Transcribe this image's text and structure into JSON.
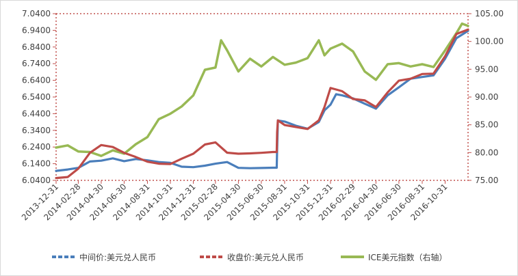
{
  "chart_data": {
    "type": "line",
    "title": "",
    "xlabel": "",
    "ylabel": "",
    "x_tick_labels": [
      "2013-12-31",
      "2014-02-28",
      "2014-04-30",
      "2014-06-30",
      "2014-08-31",
      "2014-10-31",
      "2014-12-31",
      "2015-02-28",
      "2015-04-30",
      "2015-06-30",
      "2015-08-31",
      "2015-10-31",
      "2015-12-31",
      "2016-02-29",
      "2016-04-30",
      "2016-06-30",
      "2016-08-31",
      "2016-10-31"
    ],
    "x_range": [
      "2013-12-31",
      "2016-12-31"
    ],
    "y_left_ticks": [
      "6.0400",
      "6.1400",
      "6.2400",
      "6.3400",
      "6.4400",
      "6.5400",
      "6.6400",
      "6.7400",
      "6.8400",
      "6.9400",
      "7.0400"
    ],
    "y_left_range": [
      6.04,
      7.04
    ],
    "y_right_ticks": [
      "75.00",
      "80.00",
      "85.00",
      "90.00",
      "95.00",
      "100.00",
      "105.00"
    ],
    "y_right_range": [
      75,
      105
    ],
    "grid": false,
    "legend_position": "bottom",
    "series": [
      {
        "name": "中间价:美元兑人民币",
        "axis": "left",
        "color": "#4a7ebb",
        "style": "dashed",
        "points": [
          [
            "2013-12-31",
            6.097
          ],
          [
            "2014-01-31",
            6.105
          ],
          [
            "2014-02-28",
            6.115
          ],
          [
            "2014-03-31",
            6.153
          ],
          [
            "2014-04-30",
            6.158
          ],
          [
            "2014-05-31",
            6.172
          ],
          [
            "2014-06-30",
            6.155
          ],
          [
            "2014-07-31",
            6.168
          ],
          [
            "2014-08-31",
            6.16
          ],
          [
            "2014-09-30",
            6.15
          ],
          [
            "2014-10-31",
            6.145
          ],
          [
            "2014-11-30",
            6.122
          ],
          [
            "2014-12-31",
            6.119
          ],
          [
            "2015-01-31",
            6.128
          ],
          [
            "2015-02-28",
            6.14
          ],
          [
            "2015-03-31",
            6.15
          ],
          [
            "2015-04-30",
            6.115
          ],
          [
            "2015-05-31",
            6.113
          ],
          [
            "2015-06-30",
            6.114
          ],
          [
            "2015-07-31",
            6.116
          ],
          [
            "2015-08-10",
            6.116
          ],
          [
            "2015-08-11",
            6.229
          ],
          [
            "2015-08-13",
            6.399
          ],
          [
            "2015-08-31",
            6.393
          ],
          [
            "2015-09-30",
            6.368
          ],
          [
            "2015-10-31",
            6.35
          ],
          [
            "2015-11-30",
            6.39
          ],
          [
            "2015-12-15",
            6.46
          ],
          [
            "2015-12-31",
            6.494
          ],
          [
            "2016-01-15",
            6.557
          ],
          [
            "2016-01-31",
            6.55
          ],
          [
            "2016-02-29",
            6.532
          ],
          [
            "2016-03-31",
            6.5
          ],
          [
            "2016-04-30",
            6.47
          ],
          [
            "2016-05-31",
            6.55
          ],
          [
            "2016-06-30",
            6.598
          ],
          [
            "2016-07-31",
            6.65
          ],
          [
            "2016-08-31",
            6.66
          ],
          [
            "2016-09-30",
            6.67
          ],
          [
            "2016-10-31",
            6.77
          ],
          [
            "2016-11-30",
            6.893
          ],
          [
            "2016-12-31",
            6.937
          ]
        ]
      },
      {
        "name": "收盘价:美元兑人民币",
        "axis": "left",
        "color": "#be4b48",
        "style": "dashed",
        "points": [
          [
            "2013-12-31",
            6.054
          ],
          [
            "2014-01-31",
            6.06
          ],
          [
            "2014-02-28",
            6.11
          ],
          [
            "2014-03-31",
            6.205
          ],
          [
            "2014-04-30",
            6.252
          ],
          [
            "2014-05-31",
            6.24
          ],
          [
            "2014-06-30",
            6.205
          ],
          [
            "2014-07-31",
            6.18
          ],
          [
            "2014-08-31",
            6.152
          ],
          [
            "2014-09-30",
            6.14
          ],
          [
            "2014-10-31",
            6.138
          ],
          [
            "2014-11-30",
            6.17
          ],
          [
            "2014-12-31",
            6.2
          ],
          [
            "2015-01-31",
            6.255
          ],
          [
            "2015-02-28",
            6.268
          ],
          [
            "2015-03-31",
            6.206
          ],
          [
            "2015-04-30",
            6.2
          ],
          [
            "2015-05-31",
            6.202
          ],
          [
            "2015-06-30",
            6.205
          ],
          [
            "2015-07-31",
            6.21
          ],
          [
            "2015-08-10",
            6.21
          ],
          [
            "2015-08-11",
            6.329
          ],
          [
            "2015-08-13",
            6.4
          ],
          [
            "2015-08-31",
            6.372
          ],
          [
            "2015-09-30",
            6.36
          ],
          [
            "2015-10-31",
            6.348
          ],
          [
            "2015-11-30",
            6.4
          ],
          [
            "2015-12-15",
            6.48
          ],
          [
            "2015-12-31",
            6.594
          ],
          [
            "2016-01-15",
            6.585
          ],
          [
            "2016-01-31",
            6.575
          ],
          [
            "2016-02-29",
            6.528
          ],
          [
            "2016-03-31",
            6.52
          ],
          [
            "2016-04-30",
            6.48
          ],
          [
            "2016-05-31",
            6.568
          ],
          [
            "2016-06-30",
            6.638
          ],
          [
            "2016-07-31",
            6.65
          ],
          [
            "2016-08-31",
            6.678
          ],
          [
            "2016-09-30",
            6.68
          ],
          [
            "2016-10-31",
            6.785
          ],
          [
            "2016-11-30",
            6.918
          ],
          [
            "2016-12-31",
            6.945
          ]
        ]
      },
      {
        "name": "ICE美元指数（右轴）",
        "axis": "right",
        "color": "#98b954",
        "style": "solid",
        "points": [
          [
            "2013-12-31",
            80.9
          ],
          [
            "2014-01-31",
            81.3
          ],
          [
            "2014-02-28",
            80.2
          ],
          [
            "2014-03-31",
            80.1
          ],
          [
            "2014-04-30",
            79.4
          ],
          [
            "2014-05-31",
            80.4
          ],
          [
            "2014-06-30",
            79.8
          ],
          [
            "2014-07-31",
            81.5
          ],
          [
            "2014-08-31",
            82.8
          ],
          [
            "2014-09-30",
            86.0
          ],
          [
            "2014-10-31",
            87.0
          ],
          [
            "2014-11-30",
            88.3
          ],
          [
            "2014-12-31",
            90.3
          ],
          [
            "2015-01-31",
            94.9
          ],
          [
            "2015-02-28",
            95.3
          ],
          [
            "2015-03-15",
            100.2
          ],
          [
            "2015-03-31",
            98.4
          ],
          [
            "2015-04-30",
            94.6
          ],
          [
            "2015-05-31",
            96.9
          ],
          [
            "2015-06-30",
            95.5
          ],
          [
            "2015-07-31",
            97.2
          ],
          [
            "2015-08-31",
            95.8
          ],
          [
            "2015-09-30",
            96.2
          ],
          [
            "2015-10-31",
            97.0
          ],
          [
            "2015-11-30",
            100.2
          ],
          [
            "2015-12-15",
            97.5
          ],
          [
            "2015-12-31",
            98.7
          ],
          [
            "2016-01-31",
            99.6
          ],
          [
            "2016-02-29",
            98.2
          ],
          [
            "2016-03-31",
            94.6
          ],
          [
            "2016-04-30",
            93.1
          ],
          [
            "2016-05-31",
            95.9
          ],
          [
            "2016-06-30",
            96.1
          ],
          [
            "2016-07-31",
            95.5
          ],
          [
            "2016-08-31",
            95.9
          ],
          [
            "2016-09-30",
            95.4
          ],
          [
            "2016-10-31",
            98.4
          ],
          [
            "2016-11-30",
            101.5
          ],
          [
            "2016-12-15",
            103.2
          ],
          [
            "2016-12-31",
            102.8
          ]
        ]
      }
    ]
  }
}
